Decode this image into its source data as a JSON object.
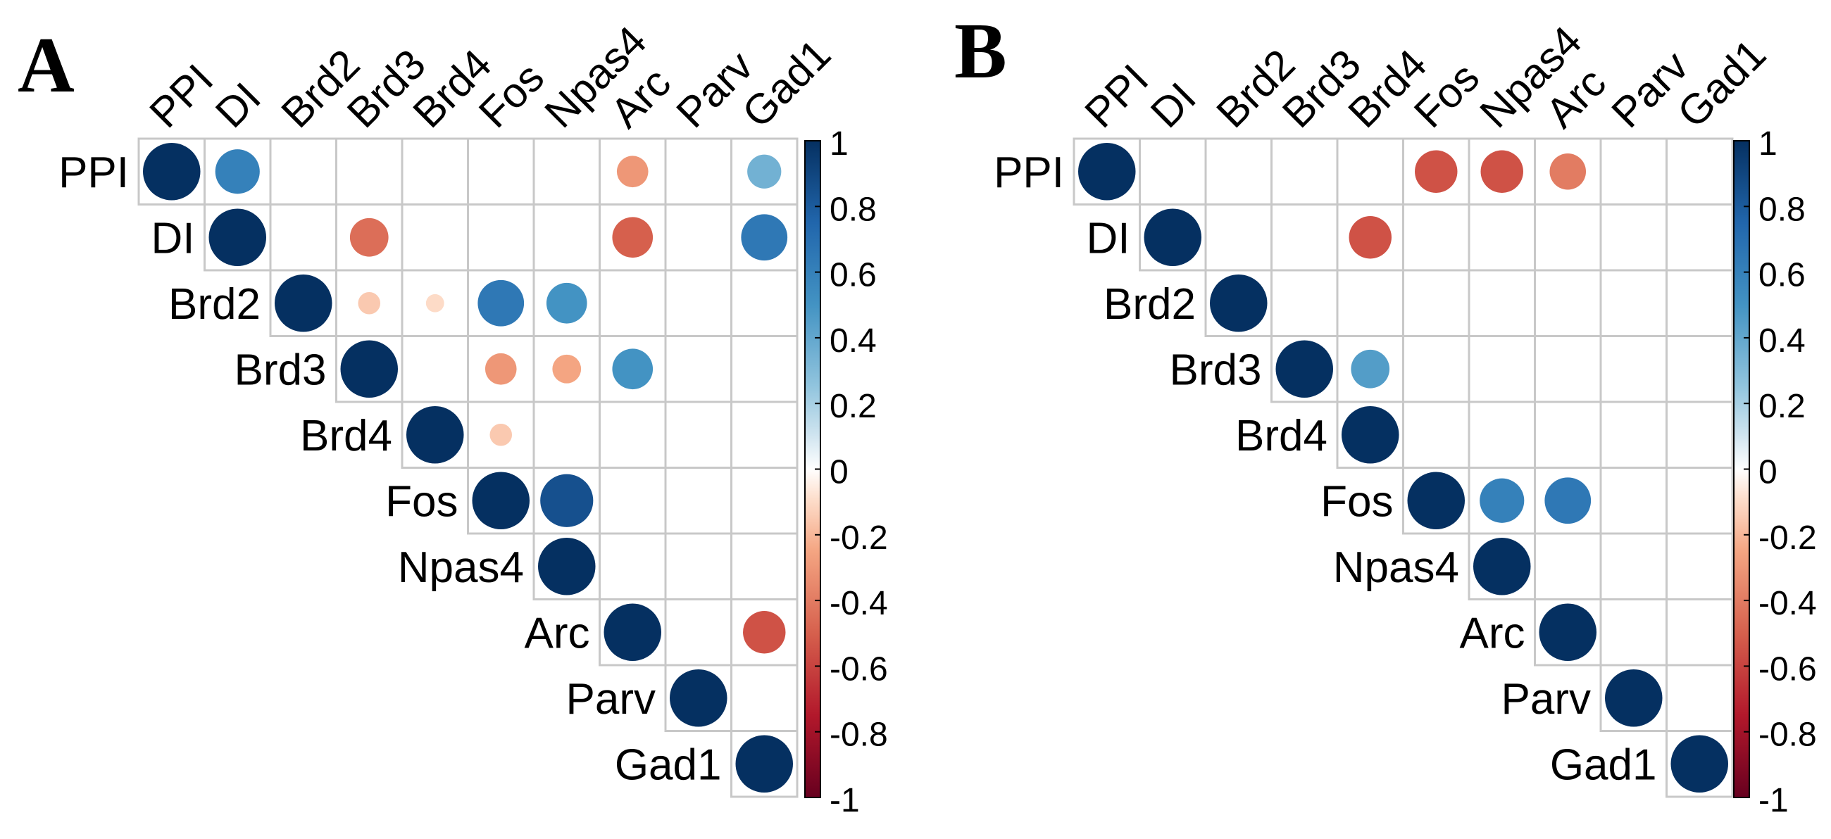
{
  "figure": {
    "panel_labels": [
      "A",
      "B"
    ]
  },
  "chart_data": [
    {
      "type": "heatmap",
      "panel": "A",
      "style": "correlation-circle-upper-triangle",
      "variables": [
        "PPI",
        "DI",
        "Brd2",
        "Brd3",
        "Brd4",
        "Fos",
        "Npas4",
        "Arc",
        "Parv",
        "Gad1"
      ],
      "cells": [
        {
          "row": "PPI",
          "col": "PPI",
          "value": 1
        },
        {
          "row": "PPI",
          "col": "DI",
          "value": 0.6
        },
        {
          "row": "PPI",
          "col": "Arc",
          "value": -0.3
        },
        {
          "row": "PPI",
          "col": "Gad1",
          "value": 0.35
        },
        {
          "row": "DI",
          "col": "DI",
          "value": 1
        },
        {
          "row": "DI",
          "col": "Brd3",
          "value": -0.45
        },
        {
          "row": "DI",
          "col": "Arc",
          "value": -0.5
        },
        {
          "row": "DI",
          "col": "Gad1",
          "value": 0.65
        },
        {
          "row": "Brd2",
          "col": "Brd2",
          "value": 1
        },
        {
          "row": "Brd2",
          "col": "Brd3",
          "value": -0.15
        },
        {
          "row": "Brd2",
          "col": "Brd4",
          "value": -0.1
        },
        {
          "row": "Brd2",
          "col": "Fos",
          "value": 0.65
        },
        {
          "row": "Brd2",
          "col": "Npas4",
          "value": 0.5
        },
        {
          "row": "Brd3",
          "col": "Brd3",
          "value": 1
        },
        {
          "row": "Brd3",
          "col": "Fos",
          "value": -0.3
        },
        {
          "row": "Brd3",
          "col": "Npas4",
          "value": -0.25
        },
        {
          "row": "Brd3",
          "col": "Arc",
          "value": 0.5
        },
        {
          "row": "Brd4",
          "col": "Brd4",
          "value": 1
        },
        {
          "row": "Brd4",
          "col": "Fos",
          "value": -0.15
        },
        {
          "row": "Fos",
          "col": "Fos",
          "value": 1
        },
        {
          "row": "Fos",
          "col": "Npas4",
          "value": 0.85
        },
        {
          "row": "Npas4",
          "col": "Npas4",
          "value": 1
        },
        {
          "row": "Arc",
          "col": "Arc",
          "value": 1
        },
        {
          "row": "Arc",
          "col": "Gad1",
          "value": -0.55
        },
        {
          "row": "Parv",
          "col": "Parv",
          "value": 1
        },
        {
          "row": "Gad1",
          "col": "Gad1",
          "value": 1
        }
      ],
      "colorbar": {
        "ticks": [
          "1",
          "0.8",
          "0.6",
          "0.4",
          "0.2",
          "0",
          "-0.2",
          "-0.4",
          "-0.6",
          "-0.8",
          "-1"
        ],
        "range": [
          -1,
          1
        ]
      }
    },
    {
      "type": "heatmap",
      "panel": "B",
      "style": "correlation-circle-upper-triangle",
      "variables": [
        "PPI",
        "DI",
        "Brd2",
        "Brd3",
        "Brd4",
        "Fos",
        "Npas4",
        "Arc",
        "Parv",
        "Gad1"
      ],
      "cells": [
        {
          "row": "PPI",
          "col": "PPI",
          "value": 1
        },
        {
          "row": "PPI",
          "col": "Fos",
          "value": -0.55
        },
        {
          "row": "PPI",
          "col": "Npas4",
          "value": -0.55
        },
        {
          "row": "PPI",
          "col": "Arc",
          "value": -0.4
        },
        {
          "row": "DI",
          "col": "DI",
          "value": 1
        },
        {
          "row": "DI",
          "col": "Brd4",
          "value": -0.55
        },
        {
          "row": "Brd2",
          "col": "Brd2",
          "value": 1
        },
        {
          "row": "Brd3",
          "col": "Brd3",
          "value": 1
        },
        {
          "row": "Brd3",
          "col": "Brd4",
          "value": 0.45
        },
        {
          "row": "Brd4",
          "col": "Brd4",
          "value": 1
        },
        {
          "row": "Fos",
          "col": "Fos",
          "value": 1
        },
        {
          "row": "Fos",
          "col": "Npas4",
          "value": 0.6
        },
        {
          "row": "Fos",
          "col": "Arc",
          "value": 0.65
        },
        {
          "row": "Npas4",
          "col": "Npas4",
          "value": 1
        },
        {
          "row": "Arc",
          "col": "Arc",
          "value": 1
        },
        {
          "row": "Parv",
          "col": "Parv",
          "value": 1
        },
        {
          "row": "Gad1",
          "col": "Gad1",
          "value": 1
        }
      ],
      "colorbar": {
        "ticks": [
          "1",
          "0.8",
          "0.6",
          "0.4",
          "0.2",
          "0",
          "-0.2",
          "-0.4",
          "-0.6",
          "-0.8",
          "-1"
        ],
        "range": [
          -1,
          1
        ]
      }
    }
  ],
  "colors": {
    "stops": [
      {
        "v": -1,
        "c": "#67001F"
      },
      {
        "v": -0.75,
        "c": "#B2182B"
      },
      {
        "v": -0.5,
        "c": "#D6604D"
      },
      {
        "v": -0.25,
        "c": "#F4A582"
      },
      {
        "v": -0.1,
        "c": "#FDDBC7"
      },
      {
        "v": 0,
        "c": "#FFFFFF"
      },
      {
        "v": 0.1,
        "c": "#D1E5F0"
      },
      {
        "v": 0.25,
        "c": "#92C5DE"
      },
      {
        "v": 0.5,
        "c": "#4393C3"
      },
      {
        "v": 0.75,
        "c": "#2166AC"
      },
      {
        "v": 1,
        "c": "#053061"
      }
    ],
    "grid": "#c8c8c8"
  }
}
